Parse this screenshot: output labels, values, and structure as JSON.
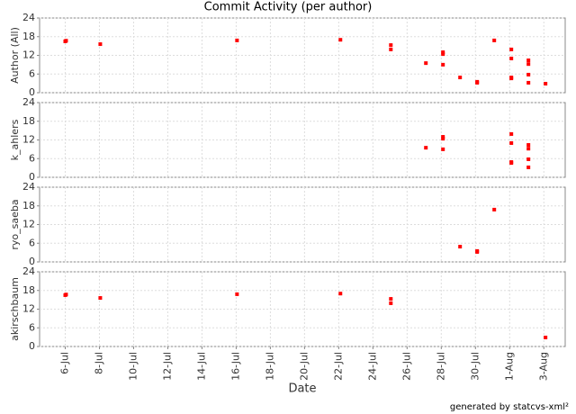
{
  "chart_data": {
    "type": "scatter",
    "title": "Commit Activity (per author)",
    "x_label": "Date",
    "footer": "generated by statcvs-xml²",
    "color": "#ff0000",
    "grid": true,
    "xlim": [
      4.5,
      35.25
    ],
    "xticks": [
      {
        "value": 6,
        "label": "6-Jul"
      },
      {
        "value": 8,
        "label": "8-Jul"
      },
      {
        "value": 10,
        "label": "10-Jul"
      },
      {
        "value": 12,
        "label": "12-Jul"
      },
      {
        "value": 14,
        "label": "14-Jul"
      },
      {
        "value": 16,
        "label": "16-Jul"
      },
      {
        "value": 18,
        "label": "18-Jul"
      },
      {
        "value": 20,
        "label": "20-Jul"
      },
      {
        "value": 22,
        "label": "22-Jul"
      },
      {
        "value": 24,
        "label": "24-Jul"
      },
      {
        "value": 26,
        "label": "26-Jul"
      },
      {
        "value": 28,
        "label": "28-Jul"
      },
      {
        "value": 30,
        "label": "30-Jul"
      },
      {
        "value": 32,
        "label": "1-Aug"
      },
      {
        "value": 34,
        "label": "3-Aug"
      }
    ],
    "panels": [
      {
        "y_label": "Author (All)",
        "ylim": [
          0,
          24
        ],
        "yticks": [
          0,
          6,
          12,
          18,
          24
        ],
        "x": [
          6,
          6.05,
          8.05,
          16.05,
          22.1,
          25.05,
          25.05,
          27.1,
          28.1,
          28.1,
          28.1,
          29.1,
          30.1,
          30.1,
          31.1,
          32.1,
          32.1,
          32.1,
          32.1,
          33.1,
          33.1,
          33.1,
          33.1,
          34.1
        ],
        "values": [
          16.5,
          16.7,
          15.6,
          16.8,
          17,
          15.3,
          13.9,
          9.5,
          13,
          12.4,
          9,
          4.9,
          3.5,
          3.2,
          16.8,
          13.9,
          11,
          4.9,
          4.6,
          10.4,
          9.2,
          5.8,
          3.2,
          2.9
        ]
      },
      {
        "y_label": "k_ahlers",
        "ylim": [
          0,
          24
        ],
        "yticks": [
          0,
          6,
          12,
          18,
          24
        ],
        "x": [
          27.1,
          28.1,
          28.1,
          28.1,
          32.1,
          32.1,
          32.1,
          32.1,
          33.1,
          33.1,
          33.1,
          33.1
        ],
        "values": [
          9.5,
          13,
          12.4,
          9,
          13.9,
          11,
          4.9,
          4.6,
          10.4,
          9.2,
          5.8,
          3.2
        ]
      },
      {
        "y_label": "ryo_saeba",
        "ylim": [
          0,
          24
        ],
        "yticks": [
          0,
          6,
          12,
          18,
          24
        ],
        "x": [
          29.1,
          30.1,
          30.1,
          31.1
        ],
        "values": [
          4.9,
          3.5,
          3.2,
          16.8
        ]
      },
      {
        "y_label": "akirschbaum",
        "ylim": [
          0,
          24
        ],
        "yticks": [
          0,
          6,
          12,
          18,
          24
        ],
        "x": [
          6,
          6.05,
          8.05,
          16.05,
          22.1,
          25.05,
          25.05,
          34.1
        ],
        "values": [
          16.5,
          16.7,
          15.6,
          16.8,
          17,
          15.3,
          13.9,
          2.9
        ]
      }
    ]
  }
}
